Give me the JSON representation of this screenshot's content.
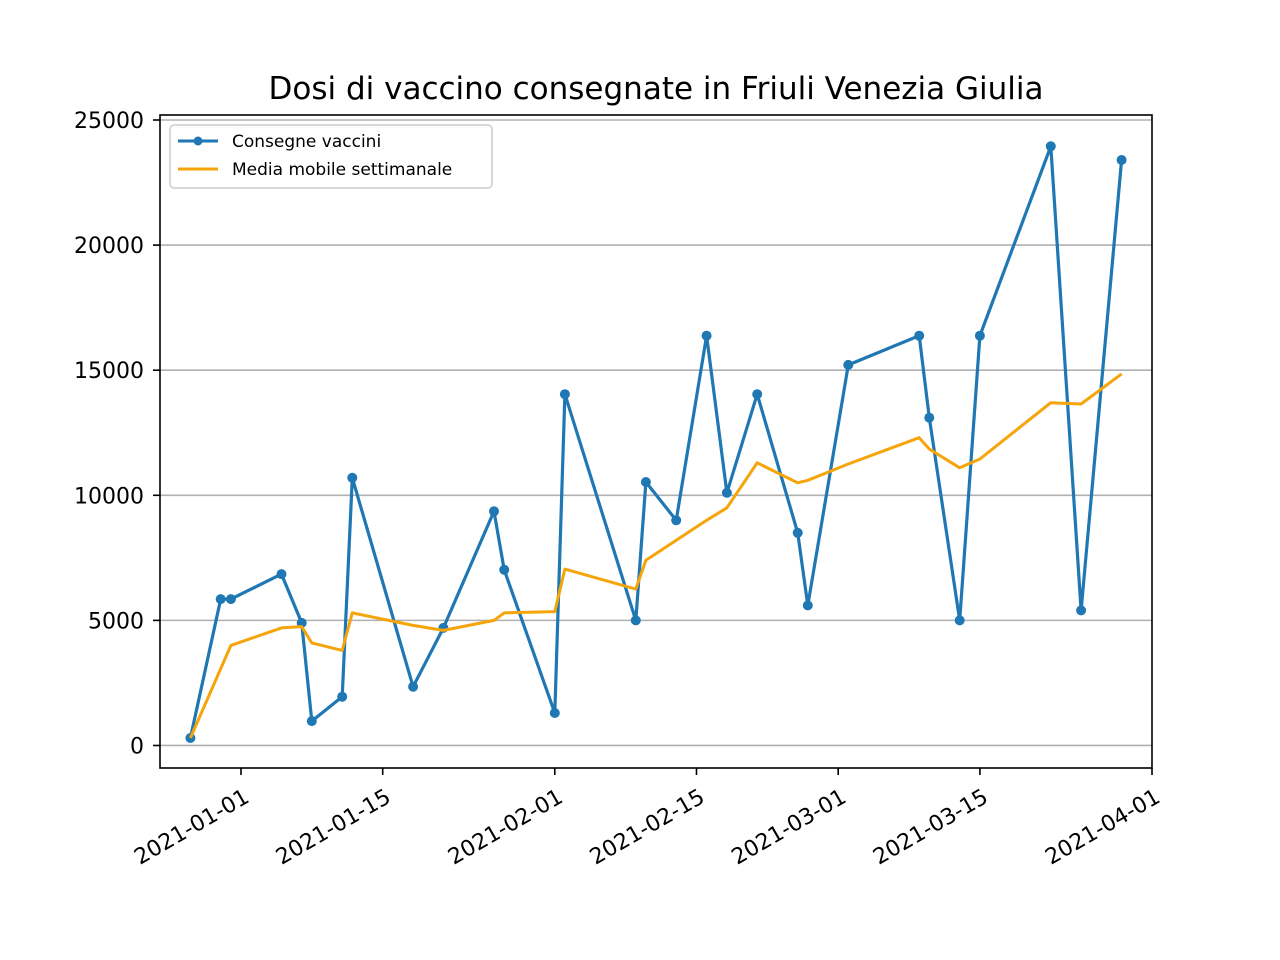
{
  "chart_data": {
    "type": "line",
    "title": "Dosi di vaccino consegnate in Friuli Venezia Giulia",
    "xlabel": "",
    "ylabel": "",
    "ylim": [
      -900,
      25200
    ],
    "xlim": [
      "2020-12-24",
      "2021-04-01"
    ],
    "x_ticks": [
      "2021-01-01",
      "2021-01-15",
      "2021-02-01",
      "2021-02-15",
      "2021-03-01",
      "2021-03-15",
      "2021-04-01"
    ],
    "y_ticks": [
      0,
      5000,
      10000,
      15000,
      20000,
      25000
    ],
    "grid": "horizontal",
    "legend_position": "top-left",
    "series": [
      {
        "name": "Consegne vaccini",
        "color": "#1f77b4",
        "marker": "circle",
        "points": [
          {
            "x": "2020-12-27",
            "y": 300
          },
          {
            "x": "2020-12-30",
            "y": 5850
          },
          {
            "x": "2020-12-31",
            "y": 5850
          },
          {
            "x": "2021-01-05",
            "y": 6850
          },
          {
            "x": "2021-01-07",
            "y": 4900
          },
          {
            "x": "2021-01-08",
            "y": 975
          },
          {
            "x": "2021-01-11",
            "y": 1950
          },
          {
            "x": "2021-01-12",
            "y": 10700
          },
          {
            "x": "2021-01-18",
            "y": 2350
          },
          {
            "x": "2021-01-21",
            "y": 4700
          },
          {
            "x": "2021-01-26",
            "y": 9360
          },
          {
            "x": "2021-01-27",
            "y": 7020
          },
          {
            "x": "2021-02-01",
            "y": 1300
          },
          {
            "x": "2021-02-02",
            "y": 14040
          },
          {
            "x": "2021-02-09",
            "y": 5000
          },
          {
            "x": "2021-02-10",
            "y": 10530
          },
          {
            "x": "2021-02-13",
            "y": 9000
          },
          {
            "x": "2021-02-16",
            "y": 16380
          },
          {
            "x": "2021-02-18",
            "y": 10100
          },
          {
            "x": "2021-02-21",
            "y": 14040
          },
          {
            "x": "2021-02-25",
            "y": 8500
          },
          {
            "x": "2021-02-26",
            "y": 5600
          },
          {
            "x": "2021-03-02",
            "y": 15210
          },
          {
            "x": "2021-03-09",
            "y": 16380
          },
          {
            "x": "2021-03-10",
            "y": 13100
          },
          {
            "x": "2021-03-13",
            "y": 5000
          },
          {
            "x": "2021-03-15",
            "y": 16380
          },
          {
            "x": "2021-03-22",
            "y": 23950
          },
          {
            "x": "2021-03-25",
            "y": 5400
          },
          {
            "x": "2021-03-29",
            "y": 23400
          }
        ]
      },
      {
        "name": "Media mobile settimanale",
        "color": "#f5a50a",
        "marker": "none",
        "points": [
          {
            "x": "2020-12-27",
            "y": 300
          },
          {
            "x": "2020-12-31",
            "y": 4000
          },
          {
            "x": "2021-01-05",
            "y": 4700
          },
          {
            "x": "2021-01-07",
            "y": 4750
          },
          {
            "x": "2021-01-08",
            "y": 4100
          },
          {
            "x": "2021-01-11",
            "y": 3800
          },
          {
            "x": "2021-01-12",
            "y": 5300
          },
          {
            "x": "2021-01-18",
            "y": 4800
          },
          {
            "x": "2021-01-21",
            "y": 4600
          },
          {
            "x": "2021-01-26",
            "y": 5000
          },
          {
            "x": "2021-01-27",
            "y": 5300
          },
          {
            "x": "2021-02-01",
            "y": 5350
          },
          {
            "x": "2021-02-02",
            "y": 7050
          },
          {
            "x": "2021-02-09",
            "y": 6250
          },
          {
            "x": "2021-02-10",
            "y": 7400
          },
          {
            "x": "2021-02-16",
            "y": 9000
          },
          {
            "x": "2021-02-18",
            "y": 9500
          },
          {
            "x": "2021-02-21",
            "y": 11300
          },
          {
            "x": "2021-02-25",
            "y": 10500
          },
          {
            "x": "2021-02-26",
            "y": 10600
          },
          {
            "x": "2021-03-02",
            "y": 11250
          },
          {
            "x": "2021-03-09",
            "y": 12300
          },
          {
            "x": "2021-03-10",
            "y": 11850
          },
          {
            "x": "2021-03-13",
            "y": 11100
          },
          {
            "x": "2021-03-15",
            "y": 11450
          },
          {
            "x": "2021-03-22",
            "y": 13700
          },
          {
            "x": "2021-03-25",
            "y": 13650
          },
          {
            "x": "2021-03-29",
            "y": 14850
          }
        ]
      }
    ]
  }
}
